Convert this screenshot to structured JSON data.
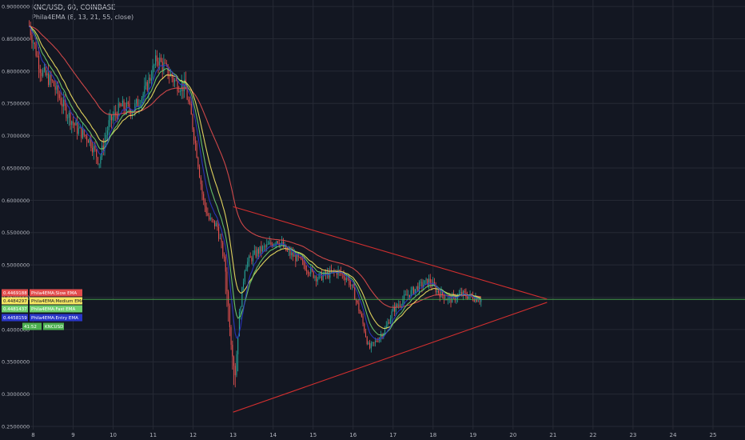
{
  "header": {
    "symbol_line": "KNC/USD, 60, COINBASE",
    "indicator_line": "Phila4EMA (8, 13, 21, 55, close)"
  },
  "chart_data": {
    "type": "candlestick",
    "title": "KNC/USD, 60, COINBASE",
    "indicator": "Phila4EMA (8, 13, 21, 55, close)",
    "x_ticks": [
      "8",
      "9",
      "10",
      "11",
      "12",
      "13",
      "14",
      "15",
      "16",
      "17",
      "18",
      "19",
      "20",
      "21",
      "22",
      "23",
      "24",
      "25"
    ],
    "x_range": [
      7.85,
      25.8
    ],
    "y_ticks": [
      "0.2500000",
      "0.3000000",
      "0.3500000",
      "0.4000000",
      "0.4500000",
      "0.5000000",
      "0.5500000",
      "0.6000000",
      "0.6500000",
      "0.7000000",
      "0.7500000",
      "0.8000000",
      "0.8500000",
      "0.9000000"
    ],
    "y_range": [
      0.245,
      0.91
    ],
    "last_price": 0.4466,
    "price_series": [
      [
        7.9,
        0.87
      ],
      [
        8.2,
        0.8
      ],
      [
        8.5,
        0.78
      ],
      [
        8.8,
        0.74
      ],
      [
        9.1,
        0.71
      ],
      [
        9.4,
        0.695
      ],
      [
        9.65,
        0.66
      ],
      [
        9.9,
        0.72
      ],
      [
        10.2,
        0.745
      ],
      [
        10.5,
        0.74
      ],
      [
        10.8,
        0.77
      ],
      [
        11.1,
        0.82
      ],
      [
        11.35,
        0.8
      ],
      [
        11.6,
        0.78
      ],
      [
        11.8,
        0.775
      ],
      [
        11.95,
        0.73
      ],
      [
        12.1,
        0.67
      ],
      [
        12.25,
        0.6
      ],
      [
        12.4,
        0.57
      ],
      [
        12.6,
        0.56
      ],
      [
        12.8,
        0.5
      ],
      [
        12.95,
        0.38
      ],
      [
        13.05,
        0.33
      ],
      [
        13.15,
        0.42
      ],
      [
        13.3,
        0.5
      ],
      [
        13.6,
        0.52
      ],
      [
        13.9,
        0.53
      ],
      [
        14.1,
        0.54
      ],
      [
        14.35,
        0.52
      ],
      [
        14.6,
        0.51
      ],
      [
        14.85,
        0.495
      ],
      [
        15.1,
        0.48
      ],
      [
        15.35,
        0.485
      ],
      [
        15.6,
        0.49
      ],
      [
        15.85,
        0.48
      ],
      [
        16.0,
        0.46
      ],
      [
        16.2,
        0.42
      ],
      [
        16.4,
        0.37
      ],
      [
        16.55,
        0.38
      ],
      [
        16.8,
        0.4
      ],
      [
        17.0,
        0.43
      ],
      [
        17.3,
        0.45
      ],
      [
        17.6,
        0.465
      ],
      [
        17.9,
        0.475
      ],
      [
        18.1,
        0.46
      ],
      [
        18.4,
        0.445
      ],
      [
        18.7,
        0.455
      ],
      [
        19.0,
        0.45
      ],
      [
        19.2,
        0.446
      ]
    ],
    "ohlc_samples": 330,
    "series": [
      {
        "name": "Phila4EMA:Slow EMA",
        "value": "0.4469188",
        "color": "#e24c4c"
      },
      {
        "name": "Phila4EMA:Medium EMA",
        "value": "0.4484297",
        "color": "#f5e663"
      },
      {
        "name": "Phila4EMA:Fast EMA",
        "value": "0.4481437",
        "color": "#6fcf6f"
      },
      {
        "name": "Phila4EMA:Entry EMA",
        "value": "0.4458159",
        "color": "#2a36c8"
      },
      {
        "name": "KNCUSD",
        "value": "41:52",
        "color": "#4caf50"
      }
    ],
    "trendlines": [
      {
        "name": "upper",
        "from": [
          13.0,
          0.59
        ],
        "to": [
          20.85,
          0.447
        ]
      },
      {
        "name": "lower",
        "from": [
          13.0,
          0.272
        ],
        "to": [
          20.85,
          0.442
        ]
      }
    ],
    "horizontal_line": 0.4466,
    "grid": true,
    "colors": {
      "background": "#131722",
      "grid": "#262a35",
      "up": "#26a69a",
      "down": "#ef5350",
      "trendline": "#d32f2f",
      "hline": "#4caf50"
    }
  }
}
